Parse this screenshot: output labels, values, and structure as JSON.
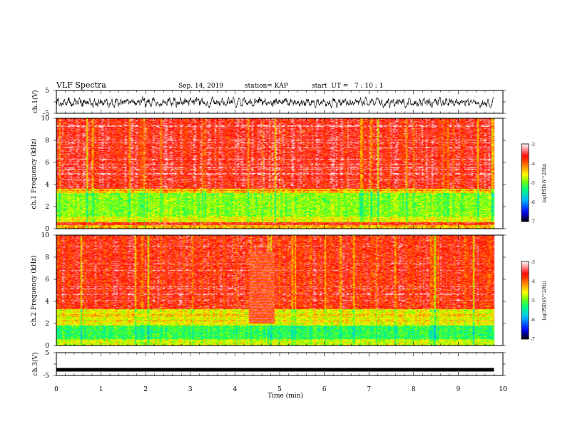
{
  "header": {
    "title": "VLF Spectra",
    "date": "Sep. 14, 2019",
    "station": "station= KAP",
    "start": "start  UT =   7 : 10 : 1"
  },
  "chart_data": [
    {
      "type": "line",
      "title": "",
      "ylabel": "ch.1(V)",
      "ylim": [
        -5,
        5
      ],
      "yticks": [
        "5",
        "-5"
      ],
      "xlim": [
        0,
        10
      ],
      "signal": "noise",
      "amplitude_range": [
        -2.6,
        2.4
      ]
    },
    {
      "type": "heatmap",
      "ylabel": "ch.1 Frequency (kHz)",
      "ylim": [
        0,
        10
      ],
      "yticks": [
        "0",
        "2",
        "4",
        "6",
        "8",
        "10"
      ],
      "xlim": [
        0,
        10
      ],
      "data_extent_min": 9.8,
      "colorbar": {
        "label": "log(PSD)(V^2/Hz)",
        "range": [
          -7,
          -3
        ],
        "ticks": [
          "-3",
          "-4",
          "-5",
          "-6",
          "-7"
        ]
      },
      "bands": [
        {
          "f_from": 0,
          "f_to": 0.3,
          "level": -4.3
        },
        {
          "f_from": 0.3,
          "f_to": 0.6,
          "level": -3.6
        },
        {
          "f_from": 0.6,
          "f_to": 1.1,
          "level": -4.6
        },
        {
          "f_from": 1.1,
          "f_to": 3.2,
          "level": -4.9
        },
        {
          "f_from": 3.2,
          "f_to": 3.6,
          "level": -4.4
        },
        {
          "f_from": 3.6,
          "f_to": 10,
          "level": -3.6
        }
      ]
    },
    {
      "type": "heatmap",
      "ylabel": "ch.2 Frequency (kHz)",
      "ylim": [
        0,
        10
      ],
      "yticks": [
        "0",
        "2",
        "4",
        "6",
        "8",
        "10"
      ],
      "xlim": [
        0,
        10
      ],
      "data_extent_min": 9.8,
      "colorbar": {
        "label": "log(PSD)(V^2/Hz)",
        "range": [
          -7,
          -3
        ],
        "ticks": [
          "-3",
          "-4",
          "-5",
          "-6",
          "-7"
        ]
      },
      "bands": [
        {
          "f_from": 0,
          "f_to": 0.5,
          "level": -4.7
        },
        {
          "f_from": 0.5,
          "f_to": 1.8,
          "level": -5.2
        },
        {
          "f_from": 1.8,
          "f_to": 3.3,
          "level": -4.6
        },
        {
          "f_from": 3.3,
          "f_to": 10,
          "level": -3.7
        }
      ],
      "disturbance": {
        "t_from": 4.3,
        "t_to": 4.9,
        "f_from": 2.0,
        "f_to": 8.5
      }
    },
    {
      "type": "line",
      "ylabel": "ch.3(V)",
      "ylim": [
        -5,
        5
      ],
      "yticks": [
        "5",
        "-5"
      ],
      "xlabel": "Time (min)",
      "xlim": [
        0,
        10
      ],
      "xticks": [
        "0",
        "1",
        "2",
        "3",
        "4",
        "5",
        "6",
        "7",
        "8",
        "9",
        "10"
      ],
      "signal": "constant",
      "value": -2.5
    }
  ],
  "colors": {
    "colormap": [
      "#000000",
      "#0000ff",
      "#00bfff",
      "#00ff7f",
      "#7fff00",
      "#ffff00",
      "#ff8000",
      "#ff0000",
      "#ffffff"
    ]
  }
}
